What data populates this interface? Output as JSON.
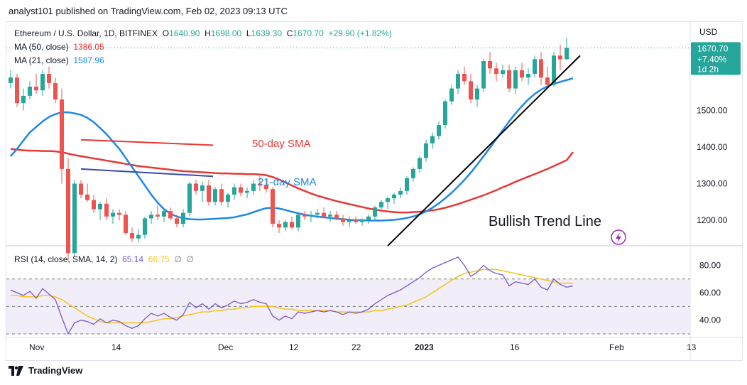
{
  "header": {
    "text": "analyst101 published on TradingView.com, Feb 02, 2023 09:13 UTC"
  },
  "info": {
    "symbol": "Ethereum / U.S. Dollar, 1D, BITFINEX",
    "o_label": "O",
    "o": "1640.90",
    "h_label": "H",
    "h": "1698.00",
    "l_label": "L",
    "l": "1639.30",
    "c_label": "C",
    "c": "1670.70",
    "change": "+29.90 (+1.82%)",
    "ma50_label": "MA (50, close)",
    "ma50_val": "1386.05",
    "ma21_label": "MA (21, close)",
    "ma21_val": "1587.96"
  },
  "rsi_info": {
    "label": "RSI (14, close, SMA, 14, 2)",
    "rsi": "65.14",
    "sma": "66.75",
    "extra": "∅  ∅"
  },
  "price_axis": {
    "currency": "USD",
    "ticks": [
      "1500.00",
      "1400.00",
      "1300.00",
      "1200.00"
    ],
    "tick_values": [
      1500,
      1400,
      1300,
      1200
    ],
    "last_price": "1670.70",
    "last_change": "+7.40%",
    "countdown": "1d 2h"
  },
  "rsi_axis": {
    "ticks": [
      "80.00",
      "60.00",
      "40.00"
    ],
    "tick_values": [
      80,
      60,
      40
    ],
    "bands": [
      70,
      30
    ],
    "mid": 50
  },
  "time_axis": {
    "labels": [
      "Nov",
      "14",
      "Dec",
      "12",
      "22",
      "2023",
      "16",
      "Feb",
      "13"
    ],
    "bold": [
      "2023"
    ]
  },
  "annotations": {
    "sma50": "50-day SMA",
    "sma21": "21-day SMA",
    "trend": "Bullish Trend Line"
  },
  "footer": {
    "brand": "TradingView"
  },
  "colors": {
    "up": "#26a69a",
    "down": "#ef5350",
    "ma50": "#e53935",
    "ma21": "#1e88e5",
    "rsi": "#7e57c2",
    "rsi_sma": "#f5c518",
    "trend": "#000000"
  },
  "chart_data": {
    "type": "candlestick",
    "y_range": [
      1140,
      1700
    ],
    "candles": [
      [
        1575,
        1610,
        1560,
        1590
      ],
      [
        1590,
        1600,
        1510,
        1520
      ],
      [
        1520,
        1560,
        1500,
        1540
      ],
      [
        1540,
        1580,
        1530,
        1565
      ],
      [
        1565,
        1600,
        1545,
        1555
      ],
      [
        1555,
        1610,
        1540,
        1600
      ],
      [
        1600,
        1620,
        1560,
        1575
      ],
      [
        1575,
        1590,
        1520,
        1530
      ],
      [
        1530,
        1560,
        1300,
        1340
      ],
      [
        1340,
        1370,
        1090,
        1110
      ],
      [
        1110,
        1310,
        1100,
        1300
      ],
      [
        1300,
        1310,
        1260,
        1270
      ],
      [
        1270,
        1300,
        1250,
        1255
      ],
      [
        1255,
        1270,
        1220,
        1230
      ],
      [
        1230,
        1250,
        1200,
        1245
      ],
      [
        1245,
        1260,
        1200,
        1210
      ],
      [
        1210,
        1230,
        1190,
        1220
      ],
      [
        1220,
        1230,
        1200,
        1215
      ],
      [
        1215,
        1225,
        1160,
        1165
      ],
      [
        1165,
        1180,
        1140,
        1150
      ],
      [
        1150,
        1175,
        1140,
        1160
      ],
      [
        1160,
        1210,
        1150,
        1205
      ],
      [
        1205,
        1225,
        1190,
        1215
      ],
      [
        1215,
        1240,
        1200,
        1210
      ],
      [
        1210,
        1230,
        1195,
        1225
      ],
      [
        1225,
        1235,
        1200,
        1205
      ],
      [
        1205,
        1215,
        1180,
        1190
      ],
      [
        1190,
        1230,
        1180,
        1220
      ],
      [
        1220,
        1305,
        1210,
        1300
      ],
      [
        1300,
        1310,
        1270,
        1280
      ],
      [
        1280,
        1305,
        1250,
        1295
      ],
      [
        1295,
        1310,
        1240,
        1250
      ],
      [
        1250,
        1290,
        1240,
        1285
      ],
      [
        1285,
        1300,
        1240,
        1250
      ],
      [
        1250,
        1275,
        1235,
        1270
      ],
      [
        1270,
        1300,
        1255,
        1290
      ],
      [
        1290,
        1300,
        1265,
        1275
      ],
      [
        1275,
        1290,
        1260,
        1280
      ],
      [
        1280,
        1310,
        1270,
        1300
      ],
      [
        1300,
        1320,
        1280,
        1295
      ],
      [
        1295,
        1310,
        1275,
        1285
      ],
      [
        1285,
        1290,
        1180,
        1190
      ],
      [
        1190,
        1200,
        1165,
        1180
      ],
      [
        1180,
        1200,
        1170,
        1195
      ],
      [
        1195,
        1210,
        1175,
        1180
      ],
      [
        1180,
        1220,
        1170,
        1215
      ],
      [
        1215,
        1225,
        1200,
        1210
      ],
      [
        1210,
        1225,
        1195,
        1215
      ],
      [
        1215,
        1230,
        1205,
        1220
      ],
      [
        1220,
        1235,
        1205,
        1210
      ],
      [
        1210,
        1225,
        1195,
        1215
      ],
      [
        1215,
        1225,
        1200,
        1205
      ],
      [
        1205,
        1215,
        1185,
        1195
      ],
      [
        1195,
        1210,
        1180,
        1200
      ],
      [
        1200,
        1210,
        1190,
        1195
      ],
      [
        1195,
        1205,
        1185,
        1200
      ],
      [
        1200,
        1215,
        1190,
        1210
      ],
      [
        1210,
        1240,
        1200,
        1235
      ],
      [
        1235,
        1255,
        1225,
        1250
      ],
      [
        1250,
        1265,
        1230,
        1260
      ],
      [
        1260,
        1275,
        1245,
        1270
      ],
      [
        1270,
        1290,
        1260,
        1280
      ],
      [
        1280,
        1320,
        1270,
        1315
      ],
      [
        1315,
        1345,
        1305,
        1340
      ],
      [
        1340,
        1375,
        1330,
        1370
      ],
      [
        1370,
        1420,
        1360,
        1410
      ],
      [
        1410,
        1440,
        1395,
        1430
      ],
      [
        1430,
        1470,
        1420,
        1460
      ],
      [
        1460,
        1530,
        1450,
        1525
      ],
      [
        1525,
        1570,
        1515,
        1560
      ],
      [
        1560,
        1610,
        1545,
        1600
      ],
      [
        1600,
        1620,
        1570,
        1580
      ],
      [
        1580,
        1600,
        1520,
        1530
      ],
      [
        1530,
        1570,
        1510,
        1560
      ],
      [
        1560,
        1640,
        1550,
        1635
      ],
      [
        1635,
        1660,
        1600,
        1615
      ],
      [
        1615,
        1630,
        1580,
        1600
      ],
      [
        1600,
        1625,
        1590,
        1610
      ],
      [
        1610,
        1625,
        1550,
        1560
      ],
      [
        1560,
        1620,
        1545,
        1610
      ],
      [
        1610,
        1630,
        1580,
        1590
      ],
      [
        1590,
        1615,
        1570,
        1600
      ],
      [
        1600,
        1650,
        1590,
        1640
      ],
      [
        1640,
        1660,
        1570,
        1590
      ],
      [
        1590,
        1620,
        1560,
        1570
      ],
      [
        1570,
        1660,
        1565,
        1650
      ],
      [
        1650,
        1680,
        1610,
        1640
      ],
      [
        1640,
        1698,
        1639,
        1671
      ]
    ],
    "ma50": [
      1395,
      1393,
      1391,
      1390,
      1390,
      1389,
      1389,
      1388,
      1386,
      1382,
      1378,
      1375,
      1372,
      1369,
      1366,
      1363,
      1360,
      1357,
      1354,
      1351,
      1348,
      1346,
      1344,
      1342,
      1340,
      1338,
      1336,
      1334,
      1333,
      1332,
      1331,
      1330,
      1329,
      1328,
      1328,
      1327,
      1327,
      1326,
      1326,
      1325,
      1323,
      1318,
      1311,
      1303,
      1295,
      1287,
      1280,
      1273,
      1267,
      1262,
      1257,
      1252,
      1248,
      1244,
      1240,
      1236,
      1232,
      1229,
      1226,
      1224,
      1222,
      1221,
      1221,
      1222,
      1223,
      1225,
      1227,
      1230,
      1234,
      1239,
      1244,
      1250,
      1256,
      1262,
      1268,
      1275,
      1282,
      1290,
      1297,
      1305,
      1312,
      1319,
      1326,
      1333,
      1340,
      1348,
      1356,
      1364,
      1386
    ],
    "ma21": [
      1375,
      1395,
      1418,
      1440,
      1455,
      1470,
      1482,
      1490,
      1495,
      1495,
      1492,
      1488,
      1480,
      1468,
      1452,
      1435,
      1415,
      1395,
      1370,
      1345,
      1320,
      1295,
      1270,
      1248,
      1230,
      1218,
      1210,
      1205,
      1203,
      1202,
      1202,
      1203,
      1204,
      1205,
      1206,
      1208,
      1212,
      1216,
      1222,
      1228,
      1233,
      1234,
      1232,
      1228,
      1223,
      1219,
      1215,
      1212,
      1210,
      1208,
      1206,
      1204,
      1203,
      1201,
      1200,
      1200,
      1199,
      1199,
      1199,
      1200,
      1201,
      1203,
      1206,
      1210,
      1216,
      1224,
      1234,
      1246,
      1260,
      1275,
      1292,
      1310,
      1330,
      1352,
      1375,
      1398,
      1422,
      1446,
      1470,
      1492,
      1512,
      1530,
      1545,
      1557,
      1566,
      1573,
      1578,
      1583,
      1588
    ],
    "rsi": [
      62,
      60,
      58,
      61,
      56,
      63,
      59,
      55,
      42,
      30,
      38,
      40,
      39,
      37,
      41,
      38,
      40,
      39,
      36,
      34,
      36,
      41,
      45,
      43,
      45,
      42,
      40,
      44,
      53,
      49,
      52,
      48,
      52,
      49,
      51,
      54,
      52,
      53,
      55,
      53,
      52,
      43,
      40,
      43,
      41,
      46,
      45,
      46,
      47,
      46,
      47,
      46,
      44,
      46,
      45,
      46,
      48,
      52,
      55,
      58,
      60,
      62,
      65,
      68,
      71,
      75,
      78,
      80,
      82,
      84,
      86,
      80,
      72,
      75,
      80,
      76,
      74,
      73,
      65,
      68,
      67,
      66,
      70,
      64,
      62,
      70,
      66,
      64,
      65
    ],
    "rsi_sma": [
      58,
      58,
      57,
      57,
      57,
      58,
      58,
      57,
      55,
      52,
      49,
      46,
      43,
      41,
      39,
      38,
      38,
      38,
      38,
      38,
      38,
      38,
      39,
      40,
      41,
      41,
      42,
      43,
      44,
      45,
      46,
      46,
      47,
      47,
      48,
      48,
      49,
      49,
      50,
      50,
      50,
      50,
      49,
      48,
      48,
      47,
      47,
      47,
      47,
      47,
      47,
      46,
      46,
      46,
      46,
      46,
      46,
      47,
      47,
      48,
      49,
      50,
      51,
      53,
      55,
      57,
      60,
      63,
      66,
      69,
      72,
      74,
      75,
      76,
      77,
      77,
      77,
      76,
      75,
      74,
      73,
      72,
      71,
      70,
      69,
      68,
      67,
      67,
      67
    ],
    "rsi_range": [
      30,
      90
    ],
    "lines": {
      "sma50_ref": [
        [
          11,
          1420
        ],
        [
          25,
          1405
        ]
      ],
      "sma21_ref": [
        [
          11,
          1340
        ],
        [
          25,
          1320
        ]
      ],
      "trend": [
        [
          59,
          1130
        ],
        [
          88,
          1650
        ]
      ]
    }
  }
}
